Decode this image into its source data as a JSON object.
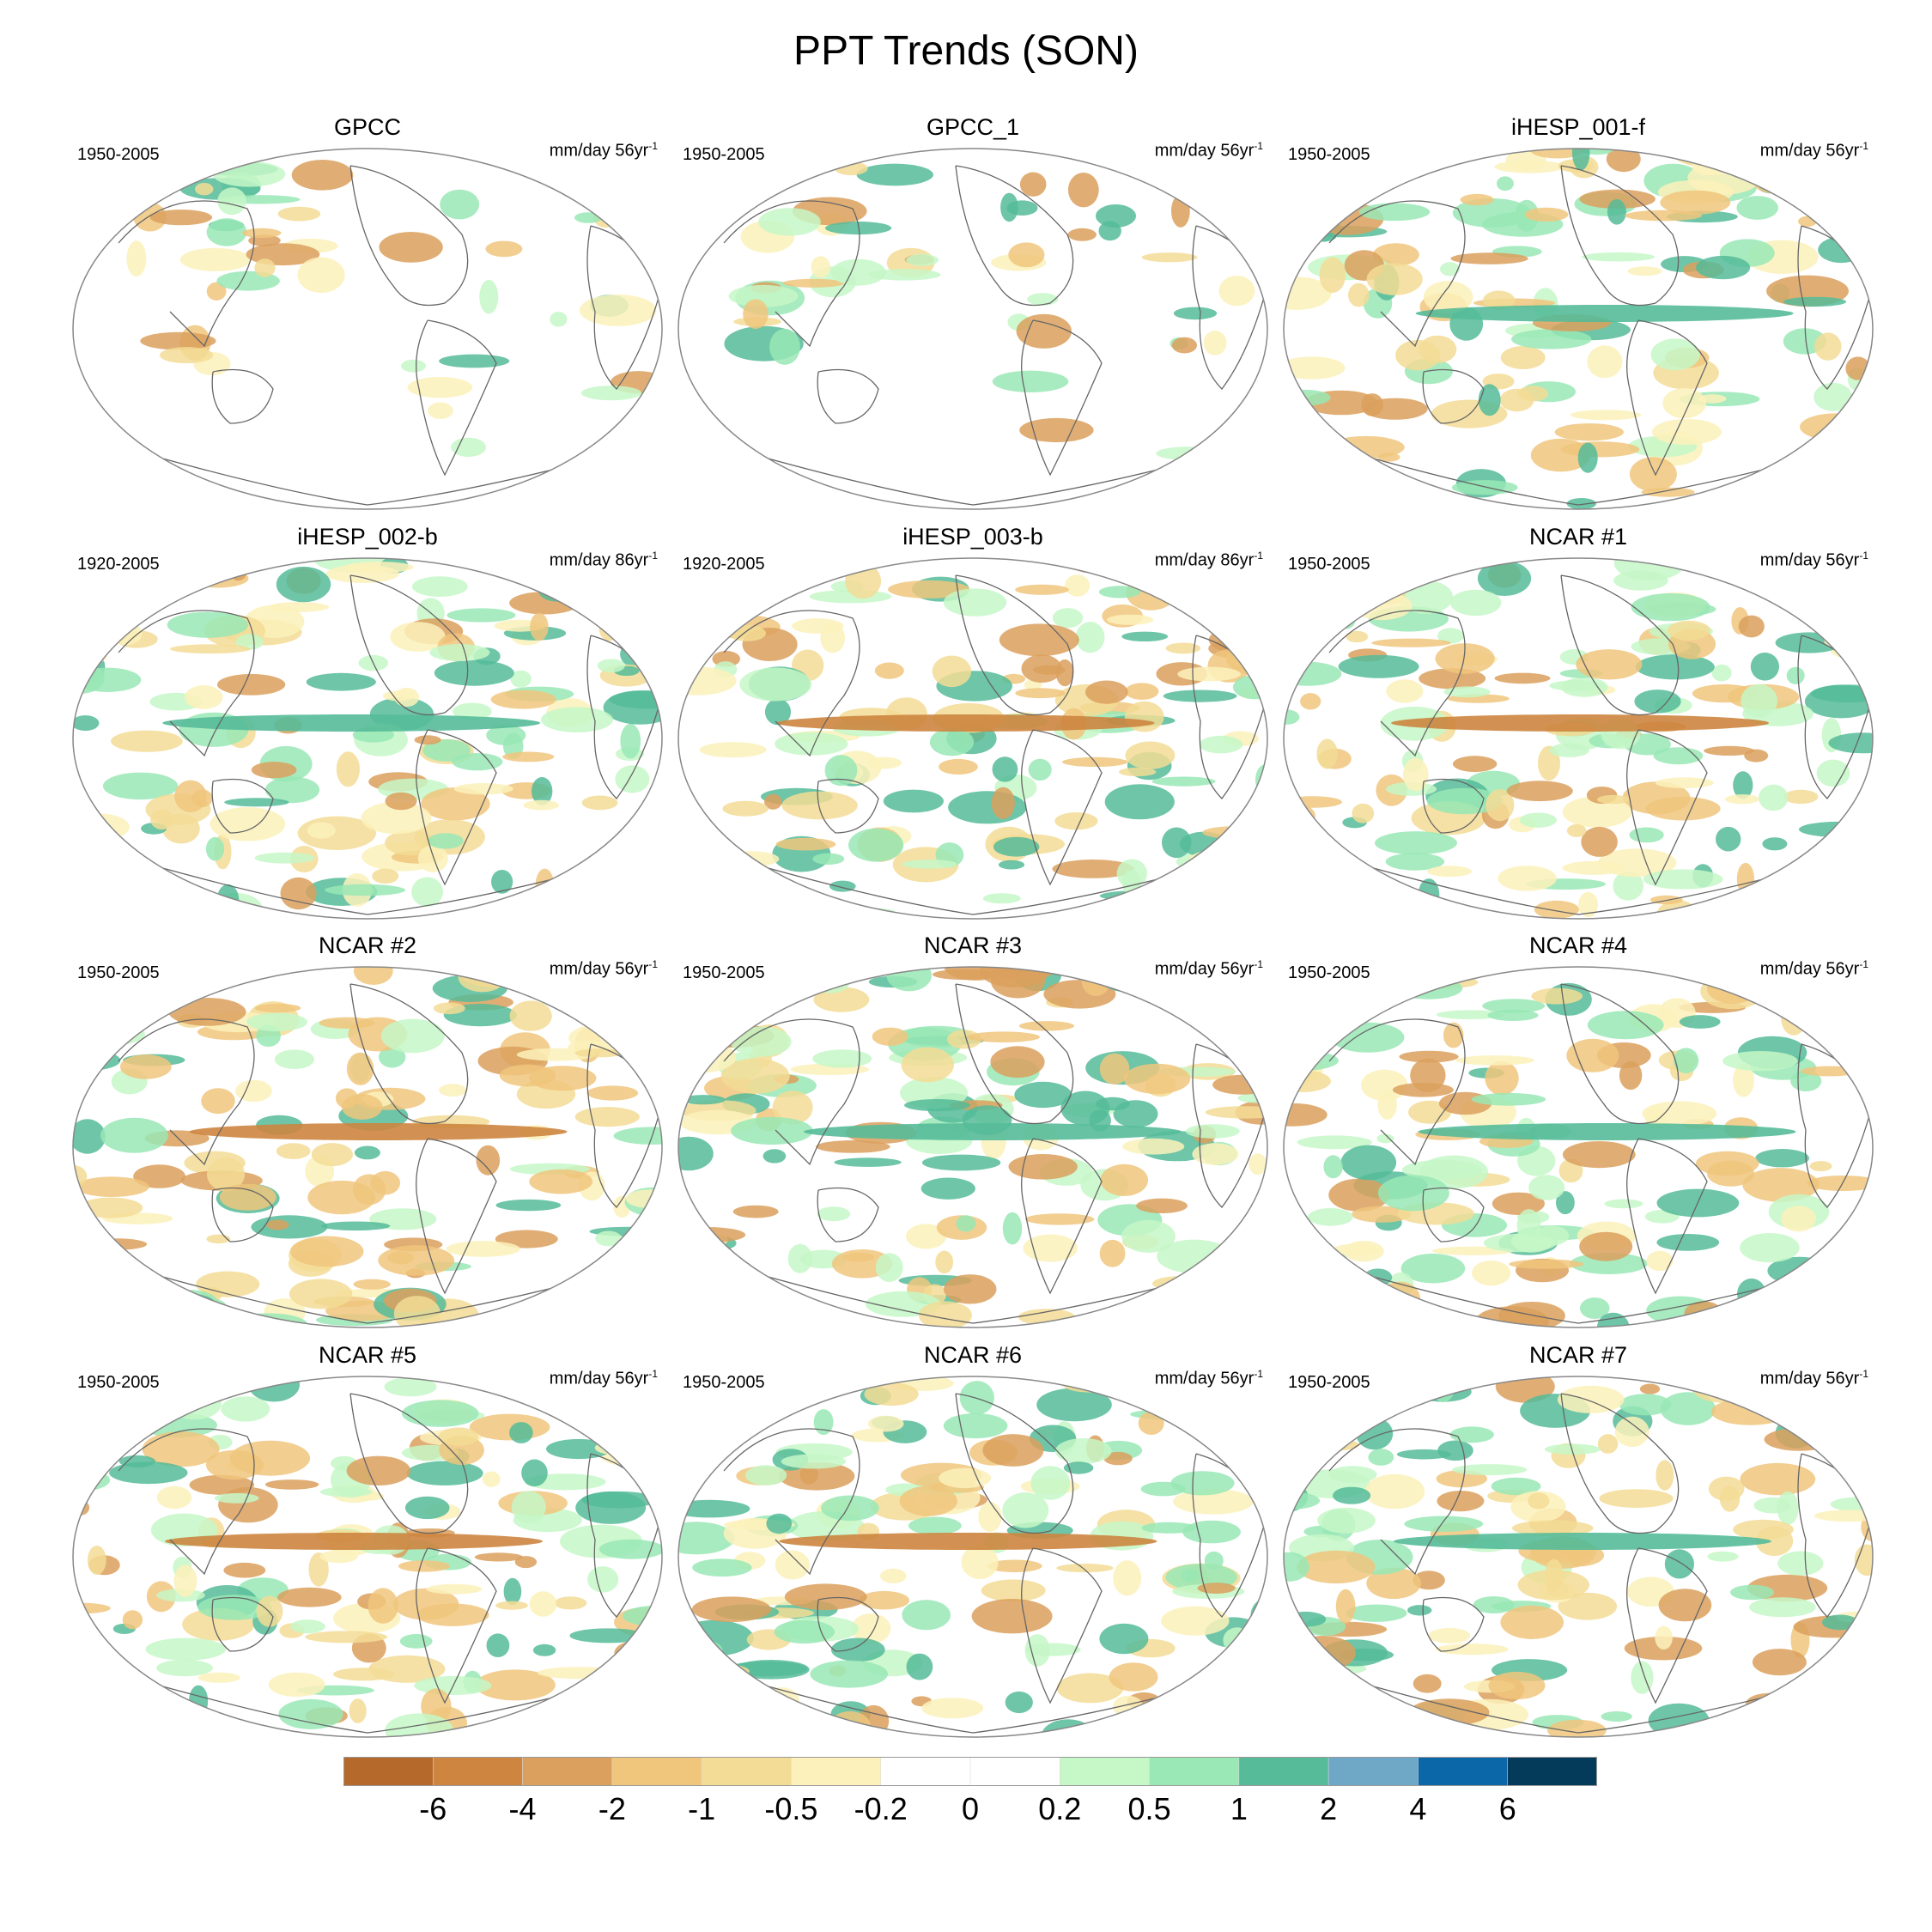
{
  "title": "PPT Trends (SON)",
  "panels": [
    {
      "name": "GPCC",
      "period": "1950-2005",
      "units": "mm/day 56yr",
      "exp": "-1",
      "style": "obs"
    },
    {
      "name": "GPCC_1",
      "period": "1950-2005",
      "units": "mm/day 56yr",
      "exp": "-1",
      "style": "obs"
    },
    {
      "name": "iHESP_001-f",
      "period": "1950-2005",
      "units": "mm/day 56yr",
      "exp": "-1",
      "style": "model"
    },
    {
      "name": "iHESP_002-b",
      "period": "1920-2005",
      "units": "mm/day 86yr",
      "exp": "-1",
      "style": "model"
    },
    {
      "name": "iHESP_003-b",
      "period": "1920-2005",
      "units": "mm/day 86yr",
      "exp": "-1",
      "style": "model"
    },
    {
      "name": "NCAR #1",
      "period": "1950-2005",
      "units": "mm/day 56yr",
      "exp": "-1",
      "style": "model"
    },
    {
      "name": "NCAR #2",
      "period": "1950-2005",
      "units": "mm/day 56yr",
      "exp": "-1",
      "style": "model"
    },
    {
      "name": "NCAR #3",
      "period": "1950-2005",
      "units": "mm/day 56yr",
      "exp": "-1",
      "style": "model"
    },
    {
      "name": "NCAR #4",
      "period": "1950-2005",
      "units": "mm/day 56yr",
      "exp": "-1",
      "style": "model"
    },
    {
      "name": "NCAR #5",
      "period": "1950-2005",
      "units": "mm/day 56yr",
      "exp": "-1",
      "style": "model"
    },
    {
      "name": "NCAR #6",
      "period": "1950-2005",
      "units": "mm/day 56yr",
      "exp": "-1",
      "style": "model"
    },
    {
      "name": "NCAR #7",
      "period": "1950-2005",
      "units": "mm/day 56yr",
      "exp": "-1",
      "style": "model"
    }
  ],
  "colorbar": {
    "colors": [
      "#b5692a",
      "#cd853f",
      "#dba05d",
      "#f0c67c",
      "#f3dc95",
      "#fcf1bb",
      "#ffffff",
      "#ffffff",
      "#c5f7c7",
      "#99e8b5",
      "#55bb99",
      "#6fa8c6",
      "#0b67a8",
      "#053b5a"
    ],
    "labels": [
      "-6",
      "-4",
      "-2",
      "-1",
      "-0.5",
      "-0.2",
      "0",
      "0.2",
      "0.5",
      "1",
      "2",
      "4",
      "6"
    ]
  }
}
